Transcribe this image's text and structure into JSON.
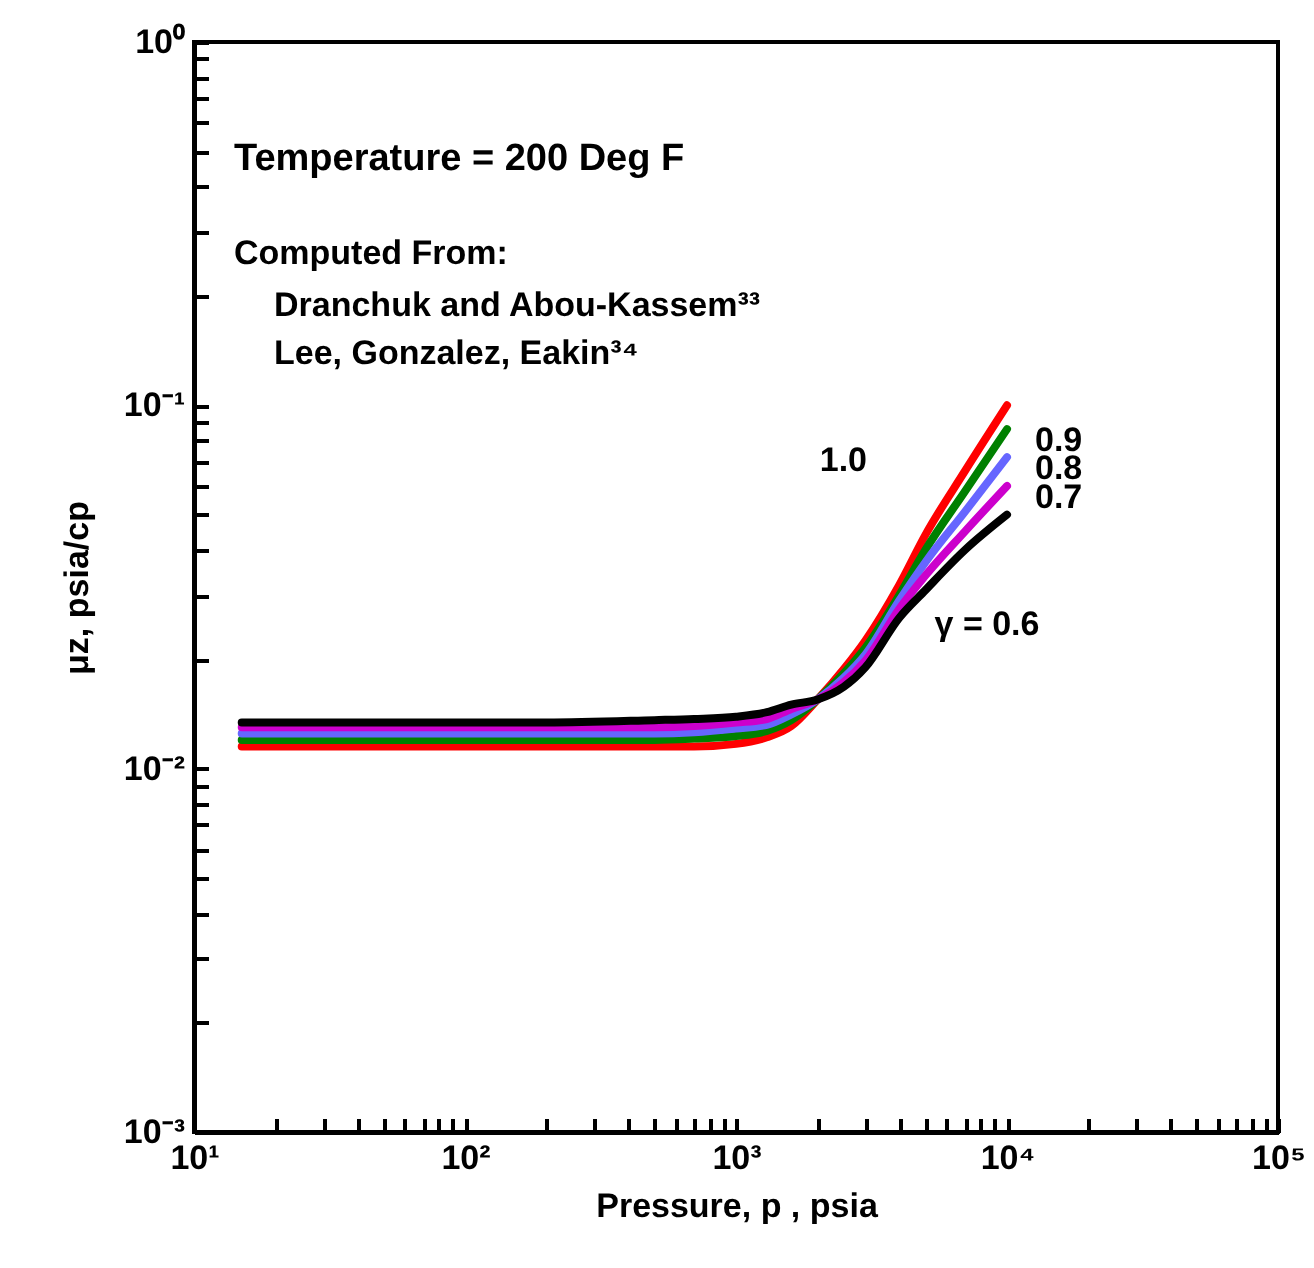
{
  "chart_data": {
    "type": "line",
    "xlabel": "Pressure, p , psia",
    "ylabel": "μz, psia/cp",
    "log": "xy",
    "xlim": [
      10,
      100000
    ],
    "ylim": [
      0.001,
      1
    ],
    "xticks": [
      {
        "value": 10,
        "label": "10¹"
      },
      {
        "value": 20,
        "label": null
      },
      {
        "value": 30,
        "label": null
      },
      {
        "value": 40,
        "label": null
      },
      {
        "value": 50,
        "label": null
      },
      {
        "value": 60,
        "label": null
      },
      {
        "value": 70,
        "label": null
      },
      {
        "value": 80,
        "label": null
      },
      {
        "value": 90,
        "label": null
      },
      {
        "value": 100,
        "label": "10²"
      },
      {
        "value": 200,
        "label": null
      },
      {
        "value": 300,
        "label": null
      },
      {
        "value": 400,
        "label": null
      },
      {
        "value": 500,
        "label": null
      },
      {
        "value": 600,
        "label": null
      },
      {
        "value": 700,
        "label": null
      },
      {
        "value": 800,
        "label": null
      },
      {
        "value": 900,
        "label": null
      },
      {
        "value": 1000,
        "label": "10³"
      },
      {
        "value": 2000,
        "label": null
      },
      {
        "value": 3000,
        "label": null
      },
      {
        "value": 4000,
        "label": null
      },
      {
        "value": 5000,
        "label": null
      },
      {
        "value": 6000,
        "label": null
      },
      {
        "value": 7000,
        "label": null
      },
      {
        "value": 8000,
        "label": null
      },
      {
        "value": 9000,
        "label": null
      },
      {
        "value": 10000,
        "label": "10⁴"
      },
      {
        "value": 20000,
        "label": null
      },
      {
        "value": 30000,
        "label": null
      },
      {
        "value": 40000,
        "label": null
      },
      {
        "value": 50000,
        "label": null
      },
      {
        "value": 60000,
        "label": null
      },
      {
        "value": 70000,
        "label": null
      },
      {
        "value": 80000,
        "label": null
      },
      {
        "value": 90000,
        "label": null
      },
      {
        "value": 100000,
        "label": "10⁵"
      }
    ],
    "yticks": [
      {
        "value": 0.001,
        "label": "10⁻³"
      },
      {
        "value": 0.002,
        "label": null
      },
      {
        "value": 0.003,
        "label": null
      },
      {
        "value": 0.004,
        "label": null
      },
      {
        "value": 0.005,
        "label": null
      },
      {
        "value": 0.006,
        "label": null
      },
      {
        "value": 0.007,
        "label": null
      },
      {
        "value": 0.008,
        "label": null
      },
      {
        "value": 0.009,
        "label": null
      },
      {
        "value": 0.01,
        "label": "10⁻²"
      },
      {
        "value": 0.02,
        "label": null
      },
      {
        "value": 0.03,
        "label": null
      },
      {
        "value": 0.04,
        "label": null
      },
      {
        "value": 0.05,
        "label": null
      },
      {
        "value": 0.06,
        "label": null
      },
      {
        "value": 0.07,
        "label": null
      },
      {
        "value": 0.08,
        "label": null
      },
      {
        "value": 0.09,
        "label": null
      },
      {
        "value": 0.1,
        "label": "10⁻¹"
      },
      {
        "value": 0.2,
        "label": null
      },
      {
        "value": 0.3,
        "label": null
      },
      {
        "value": 0.4,
        "label": null
      },
      {
        "value": 0.5,
        "label": null
      },
      {
        "value": 0.6,
        "label": null
      },
      {
        "value": 0.7,
        "label": null
      },
      {
        "value": 0.8,
        "label": null
      },
      {
        "value": 0.9,
        "label": null
      },
      {
        "value": 1,
        "label": "10⁰"
      }
    ],
    "x": [
      15,
      50,
      100,
      200,
      500,
      700,
      1000,
      1300,
      1600,
      2000,
      2500,
      3000,
      4000,
      5000,
      7000,
      10000
    ],
    "series": [
      {
        "name": "1.0",
        "color": "#ff0000",
        "values": [
          0.0115,
          0.0115,
          0.0115,
          0.0115,
          0.0115,
          0.0115,
          0.0117,
          0.0122,
          0.0131,
          0.0155,
          0.0188,
          0.0225,
          0.032,
          0.044,
          0.066,
          0.1
        ]
      },
      {
        "name": "0.9",
        "color": "#008000",
        "values": [
          0.012,
          0.012,
          0.012,
          0.012,
          0.012,
          0.0121,
          0.0123,
          0.0127,
          0.0136,
          0.0155,
          0.0183,
          0.0215,
          0.03,
          0.04,
          0.058,
          0.086
        ]
      },
      {
        "name": "0.8",
        "color": "#6666ff",
        "values": [
          0.0125,
          0.0125,
          0.0125,
          0.0125,
          0.0125,
          0.0126,
          0.0129,
          0.0132,
          0.0141,
          0.0155,
          0.0178,
          0.0206,
          0.029,
          0.037,
          0.051,
          0.072
        ]
      },
      {
        "name": "0.7",
        "color": "#cc00cc",
        "values": [
          0.013,
          0.013,
          0.013,
          0.013,
          0.013,
          0.0131,
          0.0134,
          0.0137,
          0.0146,
          0.0155,
          0.0173,
          0.0198,
          0.0275,
          0.034,
          0.045,
          0.06
        ]
      },
      {
        "name": "γ = 0.6",
        "color": "#000000",
        "values": [
          0.0134,
          0.0134,
          0.0134,
          0.0134,
          0.0136,
          0.0137,
          0.0139,
          0.0143,
          0.015,
          0.0155,
          0.0168,
          0.019,
          0.026,
          0.031,
          0.04,
          0.05
        ]
      }
    ],
    "annotations": [
      "Temperature = 200 Deg F",
      "Computed From:",
      "Dranchuk and Abou-Kassem³³",
      "Lee, Gonzalez, Eakin³⁴"
    ],
    "marker": "none",
    "line_style": "solid"
  }
}
